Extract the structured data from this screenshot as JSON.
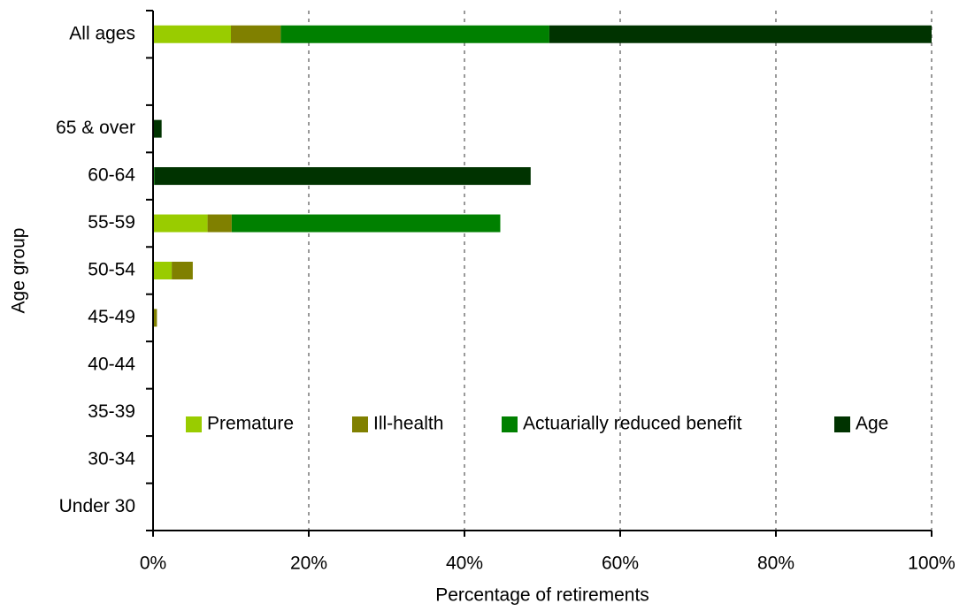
{
  "chart_data": {
    "type": "bar",
    "orientation": "horizontal",
    "stacked": true,
    "x_label": "Percentage of retirements",
    "y_label": "Age group",
    "categories": [
      "All ages",
      null,
      "65 & over",
      "60-64",
      "55-59",
      "50-54",
      "45-49",
      "40-44",
      "35-39",
      "30-34",
      "Under 30"
    ],
    "series": [
      {
        "name": "Premature",
        "color": "#99cc00",
        "values": [
          10,
          null,
          0,
          0,
          7,
          2.4,
          0,
          0,
          0,
          0,
          0
        ]
      },
      {
        "name": "Ill-health",
        "color": "#808000",
        "values": [
          6.4,
          null,
          0,
          0,
          3.1,
          2.7,
          0.5,
          0,
          0,
          0,
          0
        ]
      },
      {
        "name": "Actuarially reduced benefit",
        "color": "#008000",
        "values": [
          34.5,
          null,
          0,
          0.2,
          34.5,
          0,
          0,
          0,
          0,
          0,
          0
        ]
      },
      {
        "name": "Age",
        "color": "#003300",
        "values": [
          49.1,
          null,
          1.1,
          48.3,
          0,
          0,
          0,
          0,
          0,
          0,
          0
        ]
      }
    ],
    "xlim": [
      0,
      100
    ],
    "xticks": [
      {
        "value": 0,
        "label": "0%"
      },
      {
        "value": 20,
        "label": "20%"
      },
      {
        "value": 40,
        "label": "40%"
      },
      {
        "value": 60,
        "label": "60%"
      },
      {
        "value": 80,
        "label": "80%"
      },
      {
        "value": 100,
        "label": "100%"
      }
    ],
    "grid": true,
    "legend": "lower center"
  }
}
